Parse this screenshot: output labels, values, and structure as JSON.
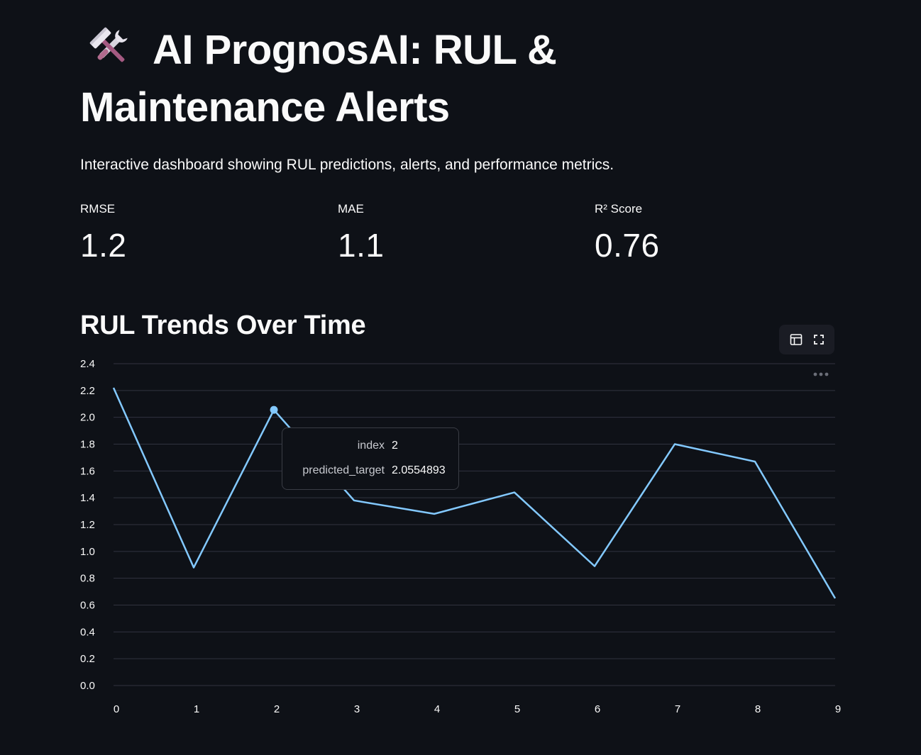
{
  "page": {
    "title_icon": "hammer-and-wrench-icon",
    "title": "AI PrognosAI: RUL & Maintenance Alerts",
    "subtitle": "Interactive dashboard showing RUL predictions, alerts, and performance metrics."
  },
  "metrics": [
    {
      "label": "RMSE",
      "value": "1.2"
    },
    {
      "label": "MAE",
      "value": "1.1"
    },
    {
      "label": "R² Score",
      "value": "0.76"
    }
  ],
  "section": {
    "heading": "RUL Trends Over Time"
  },
  "toolbar": {
    "icons": [
      "table-view-icon",
      "fullscreen-icon",
      "more-options-icon"
    ]
  },
  "chart_data": {
    "type": "line",
    "x": [
      0,
      1,
      2,
      3,
      4,
      5,
      6,
      7,
      8,
      9
    ],
    "series": [
      {
        "name": "predicted_target",
        "values": [
          2.22,
          0.88,
          2.0554893,
          1.38,
          1.28,
          1.44,
          0.89,
          1.8,
          1.67,
          0.65
        ]
      }
    ],
    "xticks": [
      0,
      1,
      2,
      3,
      4,
      5,
      6,
      7,
      8,
      9
    ],
    "yticks": [
      0.0,
      0.2,
      0.4,
      0.6,
      0.8,
      1.0,
      1.2,
      1.4,
      1.6,
      1.8,
      2.0,
      2.2,
      2.4
    ],
    "ytick_labels": [
      "0.0",
      "0.2",
      "0.4",
      "0.6",
      "0.8",
      "1.0",
      "1.2",
      "1.4",
      "1.6",
      "1.8",
      "2.0",
      "2.2",
      "2.4"
    ],
    "ylim": [
      0,
      2.4
    ],
    "xlim": [
      0,
      9
    ],
    "grid": true,
    "line_color": "#83c9ff",
    "grid_color": "#31333f",
    "highlighted_index": 2
  },
  "tooltip": {
    "rows": [
      {
        "key": "index",
        "value": "2"
      },
      {
        "key": "predicted_target",
        "value": "2.0554893"
      }
    ]
  }
}
